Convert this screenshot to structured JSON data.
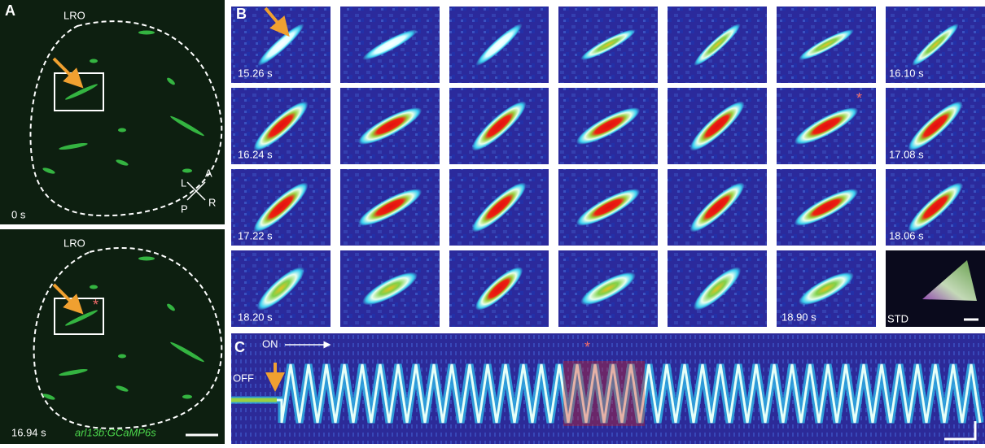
{
  "panel_a": {
    "label": "A",
    "top": {
      "region": "LRO",
      "time": "0 s",
      "axes": {
        "left": "L",
        "anterior": "A",
        "posterior": "P",
        "right": "R"
      }
    },
    "bottom": {
      "region": "LRO",
      "time": "16.94 s",
      "marker": "*",
      "line": "arl13b:GCaMP6s"
    }
  },
  "panel_b": {
    "label": "B",
    "rows": [
      {
        "start": "15.26 s",
        "end": "16.10 s"
      },
      {
        "start": "16.24 s",
        "end": "17.08 s",
        "marker": "*"
      },
      {
        "start": "17.22 s",
        "end": "18.06 s"
      }
    ],
    "final_row": {
      "start": "18.20 s",
      "end": "18.90 s",
      "projection": "STD"
    }
  },
  "panel_c": {
    "label": "C",
    "on": "ON",
    "off": "OFF",
    "marker": "*"
  }
}
